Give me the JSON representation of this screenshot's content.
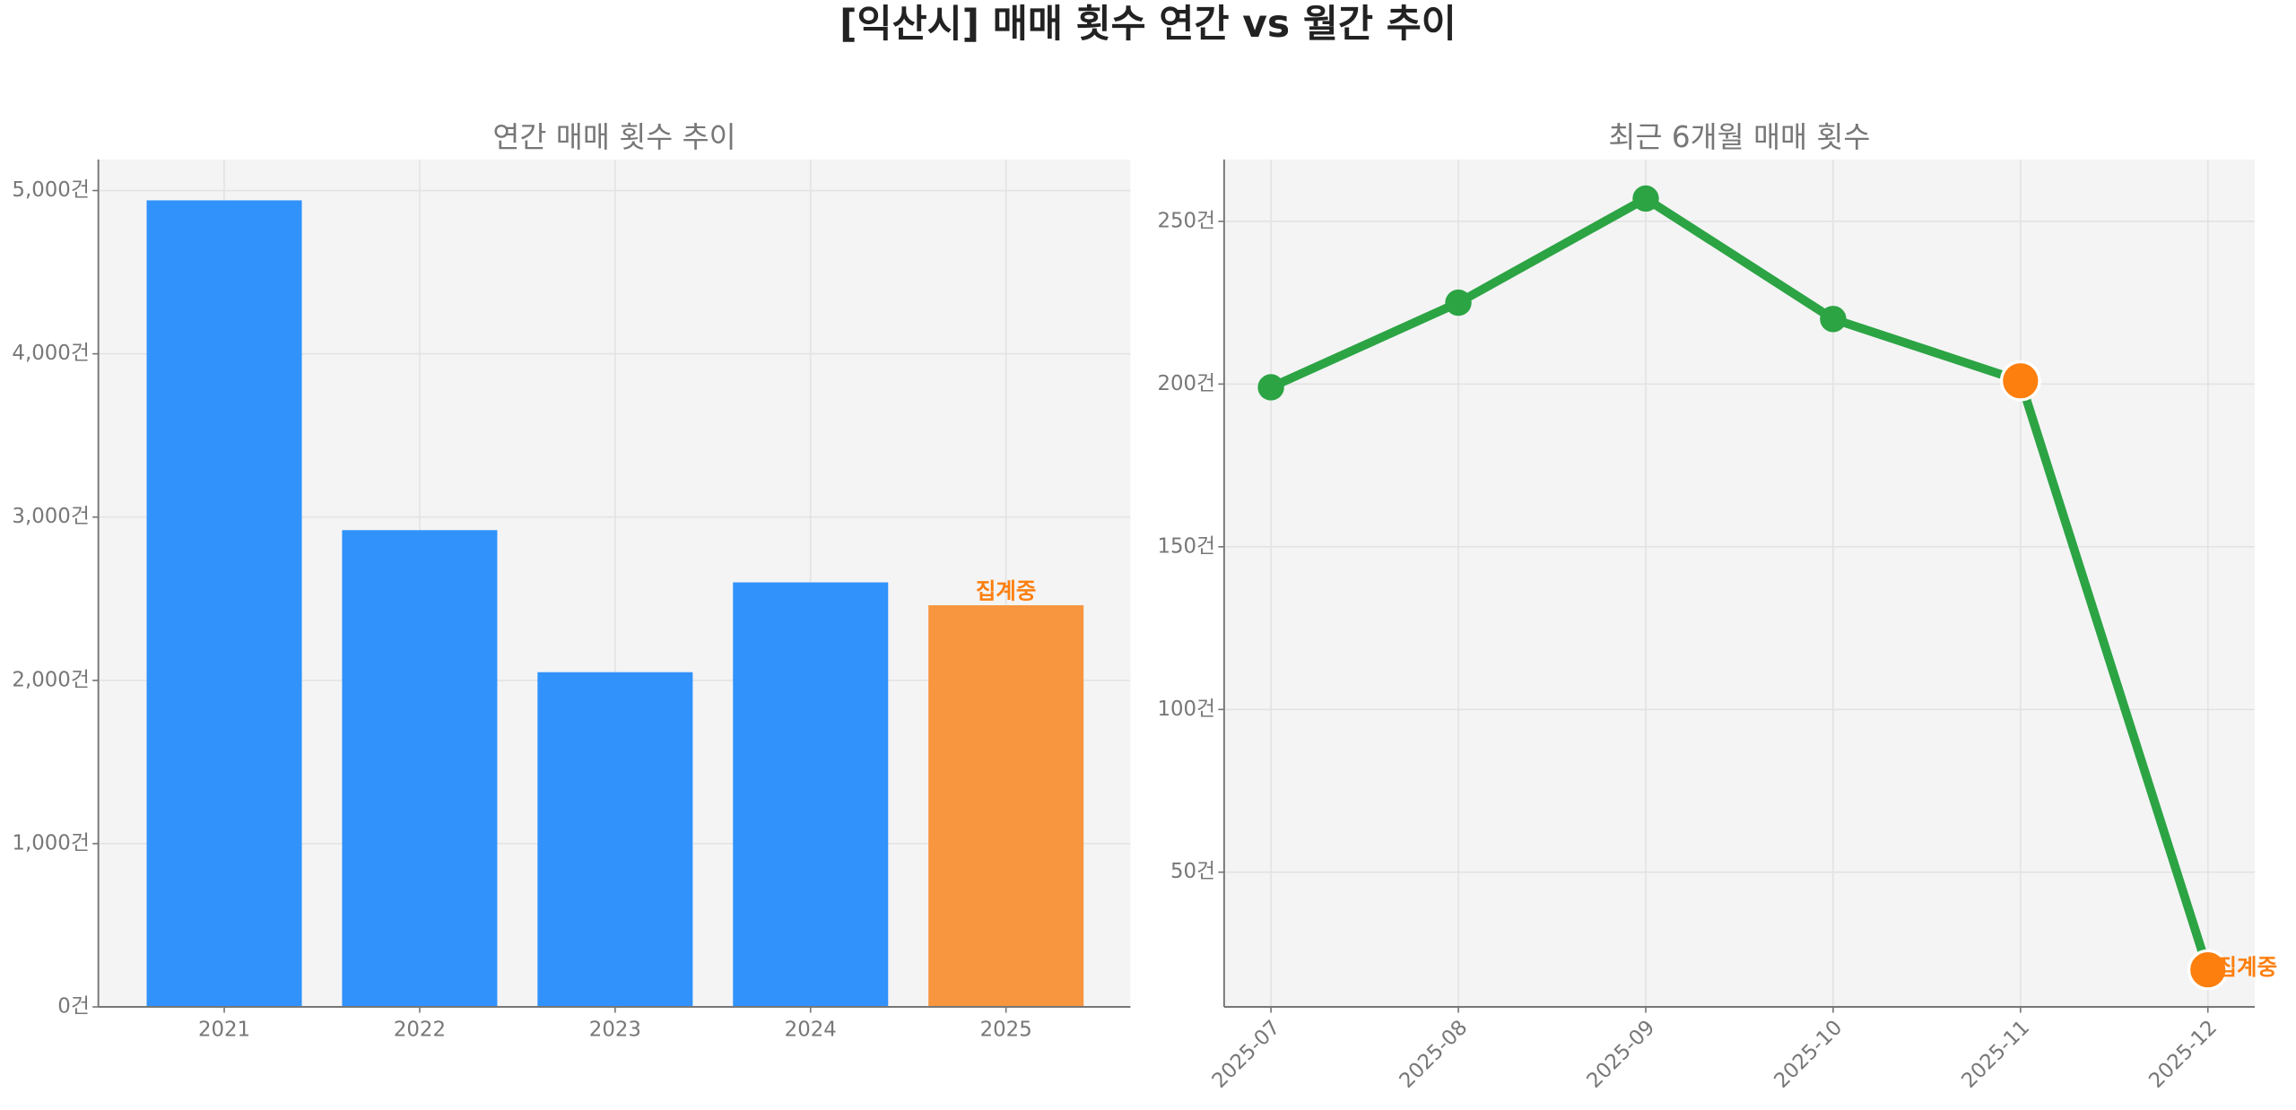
{
  "title": "[익산시] 매매 횟수 연간 vs 월간 추이",
  "chart_data": [
    {
      "type": "bar",
      "title": "연간 매매 횟수 추이",
      "categories": [
        "2021",
        "2022",
        "2023",
        "2024",
        "2025"
      ],
      "values": [
        4940,
        2920,
        2050,
        2600,
        2460
      ],
      "colors": [
        "#3192fb",
        "#3192fb",
        "#3192fb",
        "#3192fb",
        "#f8963f"
      ],
      "annotation": "집계중",
      "annotation_color": "#fd7f0e",
      "ylim": [
        0,
        5190
      ],
      "yticks": [
        {
          "value": 0,
          "label": "0건"
        },
        {
          "value": 1000,
          "label": "1,000건"
        },
        {
          "value": 2000,
          "label": "2,000건"
        },
        {
          "value": 3000,
          "label": "3,000건"
        },
        {
          "value": 4000,
          "label": "4,000건"
        },
        {
          "value": 5000,
          "label": "5,000건"
        }
      ],
      "grid": true
    },
    {
      "type": "line",
      "title": "최근 6개월 매매 횟수",
      "categories": [
        "2025-07",
        "2025-08",
        "2025-09",
        "2025-10",
        "2025-11",
        "2025-12"
      ],
      "values": [
        199,
        225,
        257,
        220,
        201,
        20
      ],
      "color": "#2ca444",
      "marker_colors": [
        "#2ca444",
        "#2ca444",
        "#2ca444",
        "#2ca444",
        "#fd7f0e",
        "#fd7f0e"
      ],
      "annotation": "집계중",
      "annotation_color": "#fd7f0e",
      "ylim": [
        8.6,
        269
      ],
      "yticks": [
        {
          "value": 50,
          "label": "50건"
        },
        {
          "value": 100,
          "label": "100건"
        },
        {
          "value": 150,
          "label": "150건"
        },
        {
          "value": 200,
          "label": "200건"
        },
        {
          "value": 250,
          "label": "250건"
        }
      ],
      "grid": true
    }
  ]
}
